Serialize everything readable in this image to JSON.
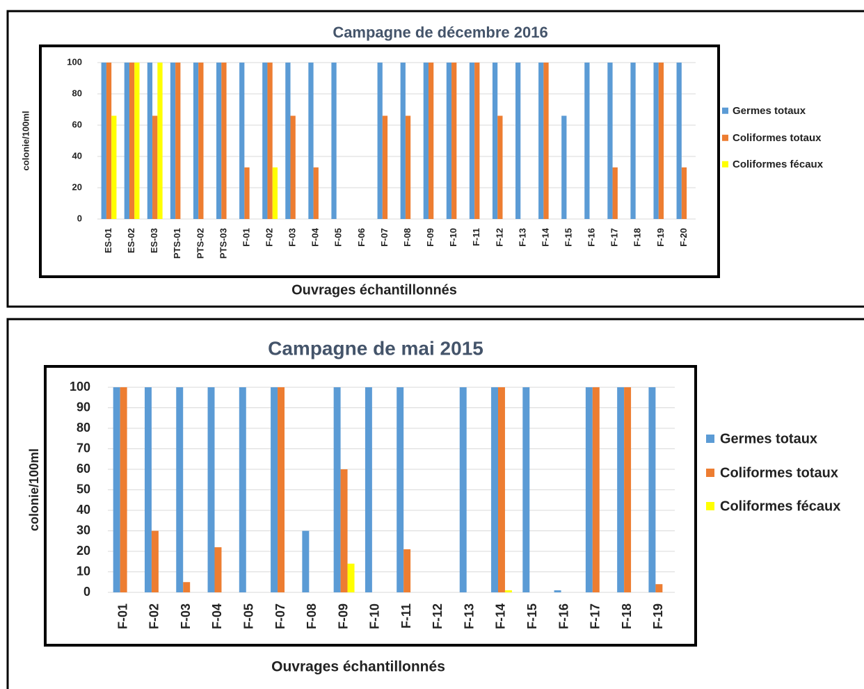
{
  "chart_data": [
    {
      "type": "bar",
      "title": "Campagne de décembre 2016",
      "y_label": "colonie/100ml",
      "x_label": "Ouvrages échantillonnés",
      "categories": [
        "ES-01",
        "ES-02",
        "ES-03",
        "PTS-01",
        "PTS-02",
        "PTS-03",
        "F-01",
        "F-02",
        "F-03",
        "F-04",
        "F-05",
        "F-06",
        "F-07",
        "F-08",
        "F-09",
        "F-10",
        "F-11",
        "F-12",
        "F-13",
        "F-14",
        "F-15",
        "F-16",
        "F-17",
        "F-18",
        "F-19",
        "F-20"
      ],
      "series": [
        {
          "name": "Germes totaux",
          "color": "#5b9bd5",
          "values": [
            100,
            100,
            100,
            100,
            100,
            100,
            100,
            100,
            100,
            100,
            100,
            0,
            100,
            100,
            100,
            100,
            100,
            100,
            100,
            100,
            66,
            100,
            100,
            100,
            100,
            100
          ]
        },
        {
          "name": "Coliformes totaux",
          "color": "#ed7d31",
          "values": [
            100,
            100,
            66,
            100,
            100,
            100,
            33,
            100,
            66,
            33,
            0,
            0,
            66,
            66,
            100,
            100,
            100,
            66,
            0,
            100,
            0,
            0,
            33,
            0,
            100,
            33
          ]
        },
        {
          "name": "Coliformes fécaux",
          "color": "#ffff00",
          "values": [
            66,
            100,
            100,
            0,
            0,
            0,
            0,
            33,
            0,
            0,
            0,
            0,
            0,
            0,
            0,
            0,
            0,
            0,
            0,
            0,
            0,
            0,
            0,
            0,
            0,
            0
          ]
        }
      ],
      "ylim": [
        0,
        100
      ],
      "yticks": [
        0,
        20,
        40,
        60,
        80,
        100
      ],
      "grid": true,
      "legend": "right"
    },
    {
      "type": "bar",
      "title": "Campagne de mai 2015",
      "y_label": "colonie/100ml",
      "x_label": "Ouvrages échantillonnés",
      "categories": [
        "F-01",
        "F-02",
        "F-03",
        "F-04",
        "F-05",
        "F-07",
        "F-08",
        "F-09",
        "F-10",
        "F-11",
        "F-12",
        "F-13",
        "F-14",
        "F-15",
        "F-16",
        "F-17",
        "F-18",
        "F-19"
      ],
      "series": [
        {
          "name": "Germes totaux",
          "color": "#5b9bd5",
          "values": [
            100,
            100,
            100,
            100,
            100,
            100,
            30,
            100,
            100,
            100,
            0,
            100,
            100,
            100,
            1,
            100,
            100,
            100
          ]
        },
        {
          "name": "Coliformes totaux",
          "color": "#ed7d31",
          "values": [
            100,
            30,
            5,
            22,
            0,
            100,
            0,
            60,
            0,
            21,
            0,
            0,
            100,
            0,
            0,
            100,
            100,
            4
          ]
        },
        {
          "name": "Coliformes fécaux",
          "color": "#ffff00",
          "values": [
            0,
            0,
            0,
            0,
            0,
            0,
            0,
            14,
            0,
            0,
            0,
            0,
            1,
            0,
            0,
            0,
            0,
            0
          ]
        }
      ],
      "ylim": [
        0,
        100
      ],
      "yticks": [
        0,
        10,
        20,
        30,
        40,
        50,
        60,
        70,
        80,
        90,
        100
      ],
      "grid": true,
      "legend": "right"
    }
  ]
}
